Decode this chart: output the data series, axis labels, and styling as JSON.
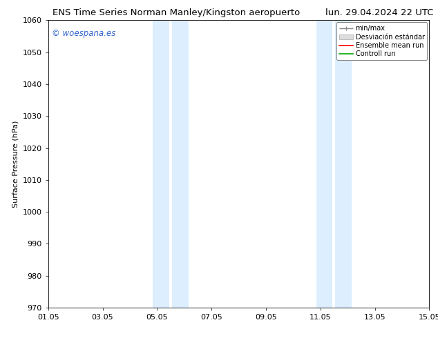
{
  "title_left": "ENS Time Series Norman Manley/Kingston aeropuerto",
  "title_right": "lun. 29.04.2024 22 UTC",
  "ylabel": "Surface Pressure (hPa)",
  "ylim": [
    970,
    1060
  ],
  "yticks": [
    970,
    980,
    990,
    1000,
    1010,
    1020,
    1030,
    1040,
    1050,
    1060
  ],
  "xlim_start": 0,
  "xlim_end": 14,
  "xtick_labels": [
    "01.05",
    "03.05",
    "05.05",
    "07.05",
    "09.05",
    "11.05",
    "13.05",
    "15.05"
  ],
  "xtick_positions": [
    0,
    2,
    4,
    6,
    8,
    10,
    12,
    14
  ],
  "shade_bands": [
    {
      "x_start": 3.85,
      "x_end": 4.45
    },
    {
      "x_start": 4.55,
      "x_end": 5.15
    },
    {
      "x_start": 9.85,
      "x_end": 10.45
    },
    {
      "x_start": 10.55,
      "x_end": 11.15
    }
  ],
  "shade_color": "#ddeeff",
  "watermark_text": "© woespana.es",
  "watermark_color": "#3366cc",
  "legend_labels": [
    "min/max",
    "Desviación estándar",
    "Ensemble mean run",
    "Controll run"
  ],
  "legend_colors_line": [
    "#888888",
    "#cccccc",
    "#ff0000",
    "#00aa00"
  ],
  "background_color": "#ffffff",
  "plot_bg_color": "#ffffff",
  "title_fontsize": 9.5,
  "tick_fontsize": 8,
  "ylabel_fontsize": 8,
  "legend_fontsize": 7,
  "watermark_fontsize": 8.5,
  "spine_color": "#000000"
}
